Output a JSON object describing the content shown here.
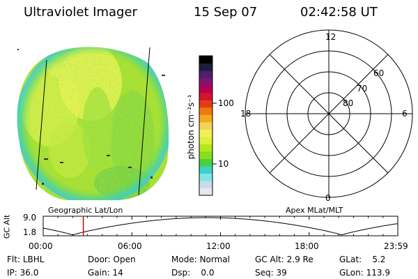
{
  "header": {
    "title": "Ultraviolet Imager",
    "date": "15 Sep 07",
    "time": "02:42:58 UT"
  },
  "colorbar": {
    "label": "photon cm⁻²s⁻¹",
    "ticks": [
      "100",
      "10"
    ],
    "scale": "log",
    "colors": [
      "#e8e8f0",
      "#c9dde6",
      "#7fe6e6",
      "#3cd2c8",
      "#46d23c",
      "#8cdc1e",
      "#b4e61e",
      "#dcf03c",
      "#f0f05a",
      "#f5d25a",
      "#f0aa1e",
      "#f07814",
      "#e63c14",
      "#d2142d",
      "#b40050",
      "#82146e",
      "#501e6e",
      "#1e1e3c",
      "#000000"
    ]
  },
  "image_labels": {
    "left": "Geographic Lat/Lon",
    "right": "Apex MLat/MLT"
  },
  "polar": {
    "mlt_labels": {
      "top": "12",
      "left": "18",
      "right": "6",
      "bottom": "0"
    },
    "lat_labels": [
      "60",
      "70",
      "80"
    ]
  },
  "altitude_plot": {
    "ylabel": "GC Alt",
    "y_ticks": [
      "9.0",
      "1.8"
    ],
    "x_ticks": [
      "00:00",
      "06:00",
      "12:00",
      "18:00",
      "23:59"
    ],
    "marker_time": "02:42:58"
  },
  "info": {
    "filter": {
      "label": "Flt:",
      "value": "LBHL"
    },
    "ip": {
      "label": "IP:",
      "value": "36.0"
    },
    "door": {
      "label": "Door:",
      "value": "Open"
    },
    "gain": {
      "label": "Gain:",
      "value": "14"
    },
    "mode": {
      "label": "Mode:",
      "value": "Normal"
    },
    "dsp": {
      "label": "Dsp:",
      "value": "0.0"
    },
    "gc_alt": {
      "label": "GC Alt:",
      "value": "2.9 Re"
    },
    "seq": {
      "label": "Seq:",
      "value": "39"
    },
    "glat": {
      "label": "GLat:",
      "value": "5.2"
    },
    "glon": {
      "label": "GLon:",
      "value": "113.9"
    }
  }
}
